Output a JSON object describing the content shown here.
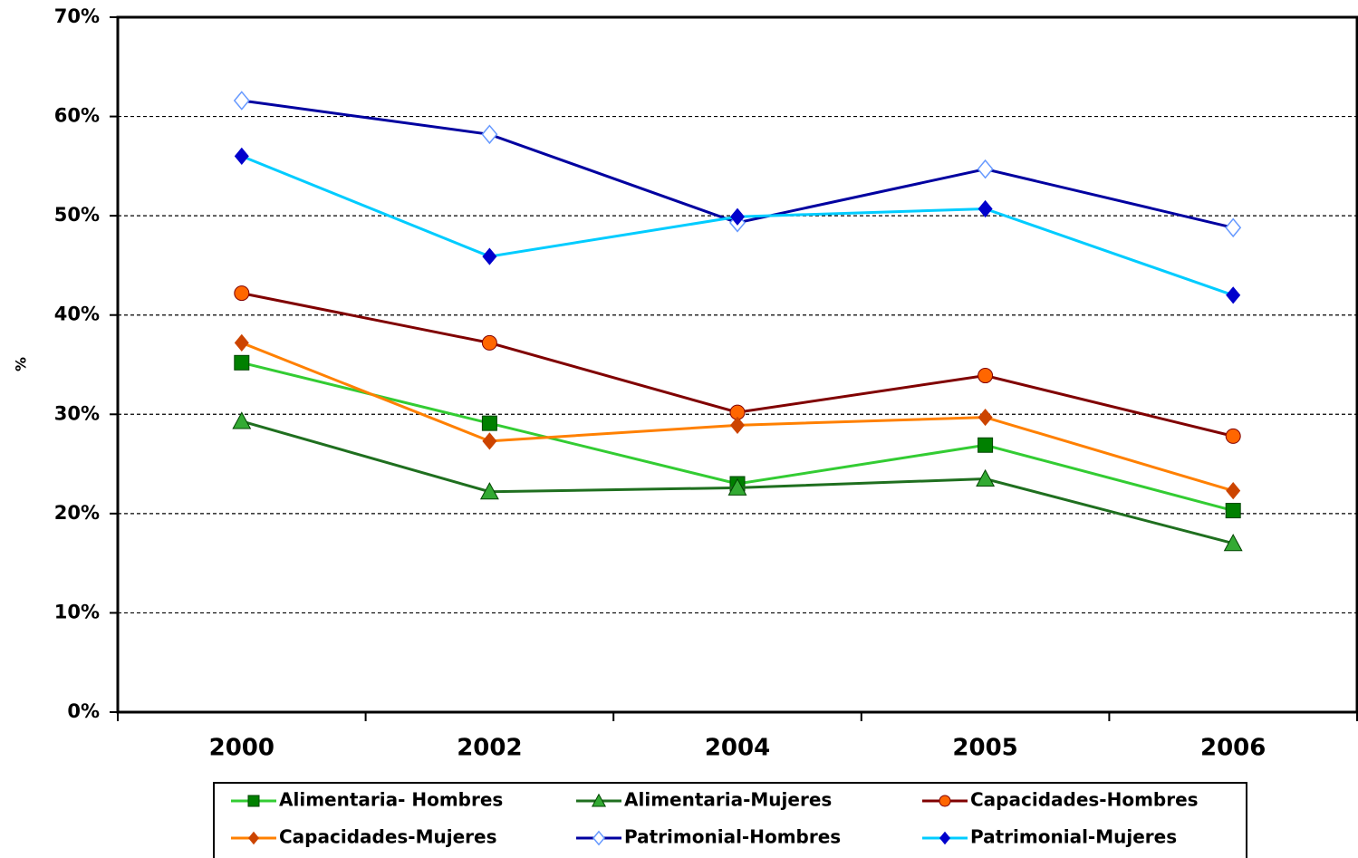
{
  "chart_data": {
    "type": "line",
    "y_label": "%",
    "categories": [
      "2000",
      "2002",
      "2004",
      "2005",
      "2006"
    ],
    "ylim": [
      0,
      70
    ],
    "yticks": [
      {
        "value": 0,
        "label": "0%"
      },
      {
        "value": 10,
        "label": "10%"
      },
      {
        "value": 20,
        "label": "20%"
      },
      {
        "value": 30,
        "label": "30%"
      },
      {
        "value": 40,
        "label": "40%"
      },
      {
        "value": 50,
        "label": "50%"
      },
      {
        "value": 60,
        "label": "60%"
      },
      {
        "value": 70,
        "label": "70%"
      }
    ],
    "grid": true,
    "legend": "bottom",
    "series": [
      {
        "name": "Alimentaria- Hombres",
        "color": "#33cc33",
        "marker": "square",
        "marker_color": "#008000",
        "values": [
          35.2,
          29.1,
          23.0,
          26.9,
          20.3
        ]
      },
      {
        "name": "Alimentaria-Mujeres",
        "color": "#1f6f1f",
        "marker": "triangle",
        "marker_color": "#33aa33",
        "values": [
          29.3,
          22.2,
          22.6,
          23.5,
          17.0
        ]
      },
      {
        "name": "Capacidades-Hombres",
        "color": "#800000",
        "marker": "circle",
        "marker_color": "#ff6600",
        "values": [
          42.2,
          37.2,
          30.2,
          33.9,
          27.8
        ]
      },
      {
        "name": "Capacidades-Mujeres",
        "color": "#ff8000",
        "marker": "diamond",
        "marker_color": "#cc4400",
        "values": [
          37.2,
          27.3,
          28.9,
          29.7,
          22.3
        ]
      },
      {
        "name": "Patrimonial-Hombres",
        "color": "#0000a0",
        "marker": "open-diamond",
        "marker_color": "#6699ff",
        "values": [
          61.6,
          58.2,
          49.3,
          54.7,
          48.8
        ]
      },
      {
        "name": "Patrimonial-Mujeres",
        "color": "#00ccff",
        "marker": "diamond",
        "marker_color": "#0000cc",
        "values": [
          56.0,
          45.9,
          49.9,
          50.7,
          42.0
        ]
      }
    ]
  }
}
